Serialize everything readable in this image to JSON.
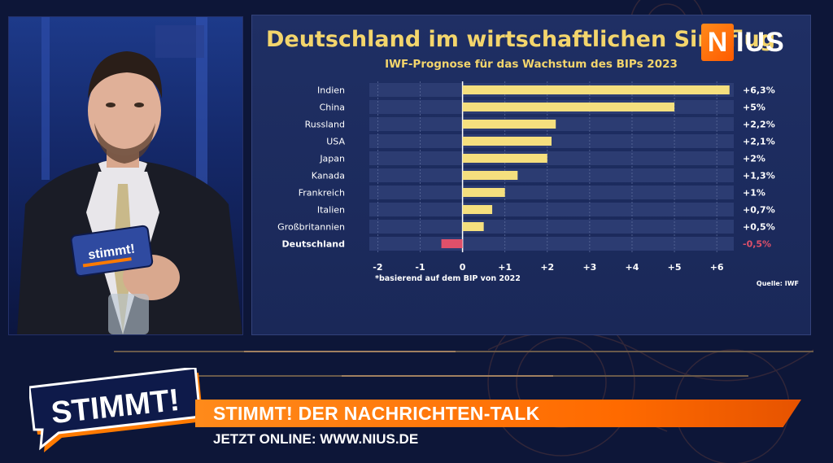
{
  "chart_data": {
    "type": "bar",
    "orientation": "horizontal",
    "title": "Deutschland im wirtschaftlichen Sinkflug",
    "subtitle": "IWF-Prognose für das Wachstum des BIPs 2023",
    "categories": [
      "Indien",
      "China",
      "Russland",
      "USA",
      "Japan",
      "Kanada",
      "Frankreich",
      "Italien",
      "Großbritannien",
      "Deutschland"
    ],
    "values": [
      6.3,
      5,
      2.2,
      2.1,
      2,
      1.3,
      1,
      0.7,
      0.5,
      -0.5
    ],
    "value_labels": [
      "+6,3%",
      "+5%",
      "+2,2%",
      "+2,1%",
      "+2%",
      "+1,3%",
      "+1%",
      "+0,7%",
      "+0,5%",
      "-0,5%"
    ],
    "highlight_category": "Deutschland",
    "xlim": [
      -2.2,
      6.4
    ],
    "x_ticks": [
      -2,
      -1,
      0,
      1,
      2,
      3,
      4,
      5,
      6
    ],
    "x_tick_labels": [
      "-2",
      "-1",
      "0",
      "+1",
      "+2",
      "+3",
      "+4",
      "+5",
      "+6"
    ],
    "grid": true,
    "footnote": "*basierend auf dem BIP von 2022",
    "source": "Quelle: IWF",
    "colors": {
      "positive": "#f5df7e",
      "negative": "#e0506a",
      "highlight_value": "#e0506a",
      "label": "#ffffff"
    }
  },
  "logo": {
    "n": "N",
    "rest": "IUS"
  },
  "stimmt": {
    "text": "STIMMT!",
    "mic_text": "stimmt!"
  },
  "ticker": {
    "title": "STIMMT! DER NACHRICHTEN-TALK",
    "subtitle": "JETZT ONLINE: WWW.NIUS.DE"
  },
  "colors": {
    "brand_orange": "#ff7a00",
    "background": "#0d1638",
    "title_yellow": "#f3d56c"
  }
}
